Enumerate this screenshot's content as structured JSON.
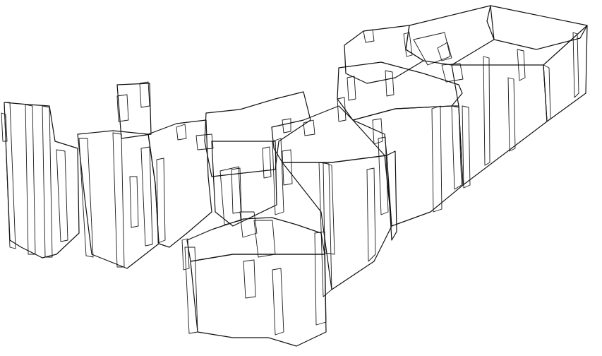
{
  "colors": {
    "background": "#ffffff",
    "face_light": "#ffffff",
    "face_cyan": "#9fe6ef",
    "face_cyan_dark": "#7fd6e3",
    "face_gray": "#d6d6d6",
    "face_gray_dark": "#a9a9a9",
    "edge": "#1a1a1a"
  }
}
